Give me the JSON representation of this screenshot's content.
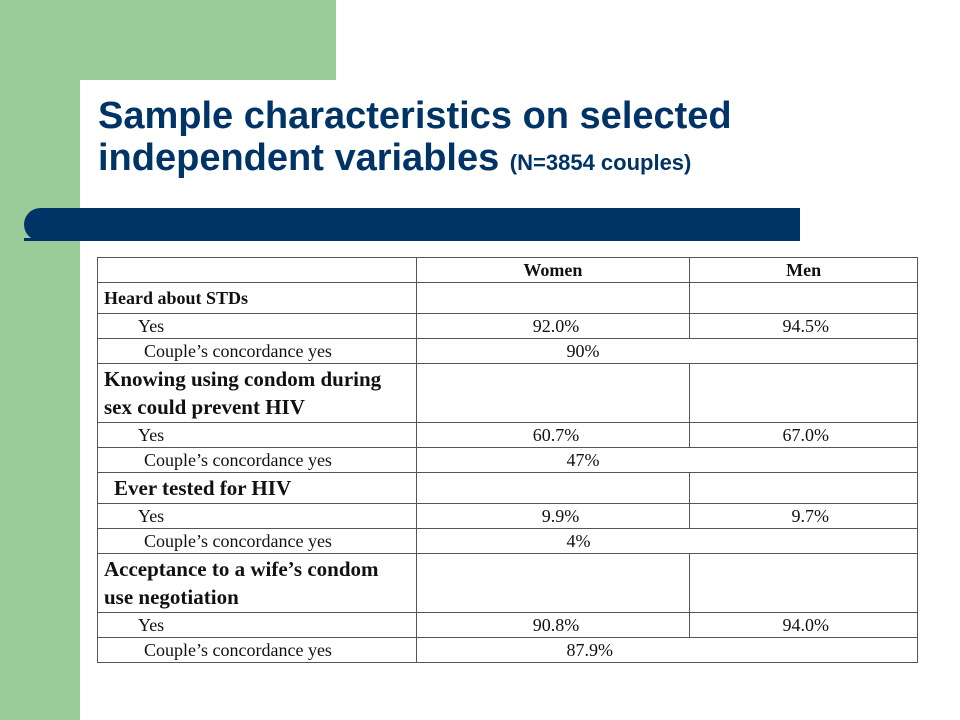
{
  "title": {
    "main": "Sample characteristics on selected independent variables",
    "sub": "(N=3854 couples)"
  },
  "table": {
    "headers": [
      "",
      "Women",
      "Men"
    ],
    "sections": [
      {
        "label": "Heard about STDs",
        "yes_label": "Yes",
        "women": "92.0%",
        "men": "94.5%",
        "conc_label": "Couple’s concordance yes",
        "concordance": "90%"
      },
      {
        "label": "Knowing using condom during sex could prevent HIV",
        "yes_label": "Yes",
        "women": "60.7%",
        "men": "67.0%",
        "conc_label": "Couple’s concordance yes",
        "concordance": "47%"
      },
      {
        "label": "Ever tested for HIV",
        "yes_label": "Yes",
        "women": "9.9%",
        "men": "9.7%",
        "conc_label": "Couple’s concordance yes",
        "concordance": "4%"
      },
      {
        "label": "Acceptance to a wife’s condom use negotiation",
        "yes_label": "Yes",
        "women": "90.8%",
        "men": "94.0%",
        "conc_label": "Couple’s concordance yes",
        "concordance": "87.9%"
      }
    ]
  },
  "colors": {
    "title": "#003366",
    "accent_bar": "#003366",
    "side_panel": "#99cc99"
  }
}
